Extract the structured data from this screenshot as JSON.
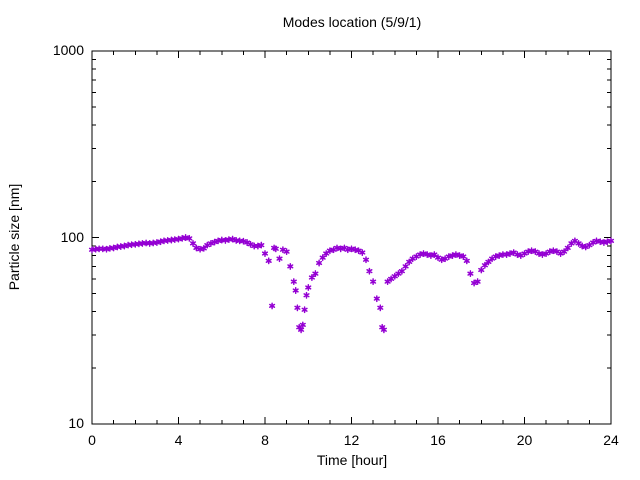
{
  "chart_data": {
    "type": "scatter",
    "title": "Modes location (5/9/1)",
    "xlabel": "Time [hour]",
    "ylabel": "Particle size [nm]",
    "x_range": [
      0,
      24
    ],
    "y_range": [
      10,
      1000
    ],
    "y_scale": "log",
    "x_major_ticks": [
      0,
      4,
      8,
      12,
      16,
      20,
      24
    ],
    "x_minor_step": 1,
    "y_major_ticks": [
      10,
      100,
      1000
    ],
    "y_minor_multiples": [
      2,
      3,
      4,
      5,
      6,
      7,
      8,
      9
    ],
    "grid": false,
    "legend": "none",
    "marker": "asterisk",
    "marker_color": "#9400D3",
    "axis_color": "#000000",
    "background_color": "#ffffff",
    "points": [
      [
        0.0,
        86
      ],
      [
        0.17,
        86.5
      ],
      [
        0.33,
        87
      ],
      [
        0.5,
        87
      ],
      [
        0.67,
        86.5
      ],
      [
        0.83,
        87.5
      ],
      [
        1.0,
        88
      ],
      [
        1.17,
        89
      ],
      [
        1.33,
        89.5
      ],
      [
        1.5,
        90
      ],
      [
        1.67,
        91
      ],
      [
        1.83,
        91.5
      ],
      [
        2.0,
        92
      ],
      [
        2.17,
        92.5
      ],
      [
        2.33,
        93
      ],
      [
        2.5,
        93.5
      ],
      [
        2.67,
        93
      ],
      [
        2.83,
        93.5
      ],
      [
        3.0,
        94
      ],
      [
        3.17,
        95
      ],
      [
        3.33,
        96
      ],
      [
        3.5,
        96.5
      ],
      [
        3.67,
        97
      ],
      [
        3.83,
        97.5
      ],
      [
        4.0,
        98
      ],
      [
        4.17,
        99
      ],
      [
        4.33,
        100
      ],
      [
        4.5,
        99
      ],
      [
        4.67,
        93
      ],
      [
        4.83,
        88
      ],
      [
        5.0,
        86.5
      ],
      [
        5.17,
        87.5
      ],
      [
        5.33,
        91
      ],
      [
        5.5,
        93
      ],
      [
        5.67,
        94.5
      ],
      [
        5.83,
        96
      ],
      [
        6.0,
        97
      ],
      [
        6.17,
        96.5
      ],
      [
        6.33,
        97.5
      ],
      [
        6.5,
        98
      ],
      [
        6.67,
        96.5
      ],
      [
        6.83,
        96
      ],
      [
        7.0,
        95.5
      ],
      [
        7.17,
        94
      ],
      [
        7.33,
        92
      ],
      [
        7.5,
        90
      ],
      [
        7.67,
        90
      ],
      [
        7.83,
        91
      ],
      [
        8.0,
        82
      ],
      [
        8.17,
        75
      ],
      [
        8.33,
        43
      ],
      [
        8.42,
        88
      ],
      [
        8.5,
        87
      ],
      [
        8.67,
        77
      ],
      [
        8.83,
        86
      ],
      [
        9.0,
        84
      ],
      [
        9.17,
        70
      ],
      [
        9.33,
        58
      ],
      [
        9.42,
        52
      ],
      [
        9.5,
        42
      ],
      [
        9.58,
        33
      ],
      [
        9.67,
        32
      ],
      [
        9.75,
        34
      ],
      [
        9.83,
        41
      ],
      [
        9.92,
        49
      ],
      [
        10.0,
        54
      ],
      [
        10.17,
        61
      ],
      [
        10.33,
        64
      ],
      [
        10.5,
        73
      ],
      [
        10.67,
        78
      ],
      [
        10.83,
        82
      ],
      [
        11.0,
        85
      ],
      [
        11.17,
        86
      ],
      [
        11.33,
        88
      ],
      [
        11.5,
        87
      ],
      [
        11.67,
        88
      ],
      [
        11.83,
        86
      ],
      [
        12.0,
        87
      ],
      [
        12.17,
        86
      ],
      [
        12.33,
        85
      ],
      [
        12.5,
        83
      ],
      [
        12.67,
        76
      ],
      [
        12.83,
        66
      ],
      [
        13.0,
        58
      ],
      [
        13.17,
        47
      ],
      [
        13.33,
        42
      ],
      [
        13.42,
        33
      ],
      [
        13.5,
        32
      ],
      [
        13.67,
        58
      ],
      [
        13.83,
        60
      ],
      [
        14.0,
        62
      ],
      [
        14.17,
        64
      ],
      [
        14.33,
        66
      ],
      [
        14.5,
        70
      ],
      [
        14.67,
        74
      ],
      [
        14.83,
        77
      ],
      [
        15.0,
        79
      ],
      [
        15.17,
        81
      ],
      [
        15.33,
        82
      ],
      [
        15.5,
        81
      ],
      [
        15.67,
        80
      ],
      [
        15.83,
        81
      ],
      [
        16.0,
        78
      ],
      [
        16.17,
        76
      ],
      [
        16.33,
        77
      ],
      [
        16.5,
        79
      ],
      [
        16.67,
        80
      ],
      [
        16.83,
        81
      ],
      [
        17.0,
        80
      ],
      [
        17.17,
        79
      ],
      [
        17.33,
        75
      ],
      [
        17.5,
        64
      ],
      [
        17.67,
        57
      ],
      [
        17.83,
        58
      ],
      [
        18.0,
        67
      ],
      [
        18.17,
        71
      ],
      [
        18.33,
        74
      ],
      [
        18.5,
        77
      ],
      [
        18.67,
        79
      ],
      [
        18.83,
        80
      ],
      [
        19.0,
        81
      ],
      [
        19.17,
        81
      ],
      [
        19.33,
        82
      ],
      [
        19.5,
        83
      ],
      [
        19.67,
        81
      ],
      [
        19.83,
        80
      ],
      [
        20.0,
        82
      ],
      [
        20.17,
        84
      ],
      [
        20.33,
        85
      ],
      [
        20.5,
        84
      ],
      [
        20.67,
        82
      ],
      [
        20.83,
        81
      ],
      [
        21.0,
        82
      ],
      [
        21.17,
        84
      ],
      [
        21.33,
        85
      ],
      [
        21.5,
        84
      ],
      [
        21.67,
        82
      ],
      [
        21.83,
        84
      ],
      [
        22.0,
        88
      ],
      [
        22.17,
        93
      ],
      [
        22.33,
        96
      ],
      [
        22.5,
        93
      ],
      [
        22.67,
        90
      ],
      [
        22.83,
        89
      ],
      [
        23.0,
        91
      ],
      [
        23.17,
        94
      ],
      [
        23.33,
        96
      ],
      [
        23.5,
        95
      ],
      [
        23.67,
        94
      ],
      [
        23.83,
        95
      ],
      [
        24.0,
        96
      ]
    ]
  }
}
